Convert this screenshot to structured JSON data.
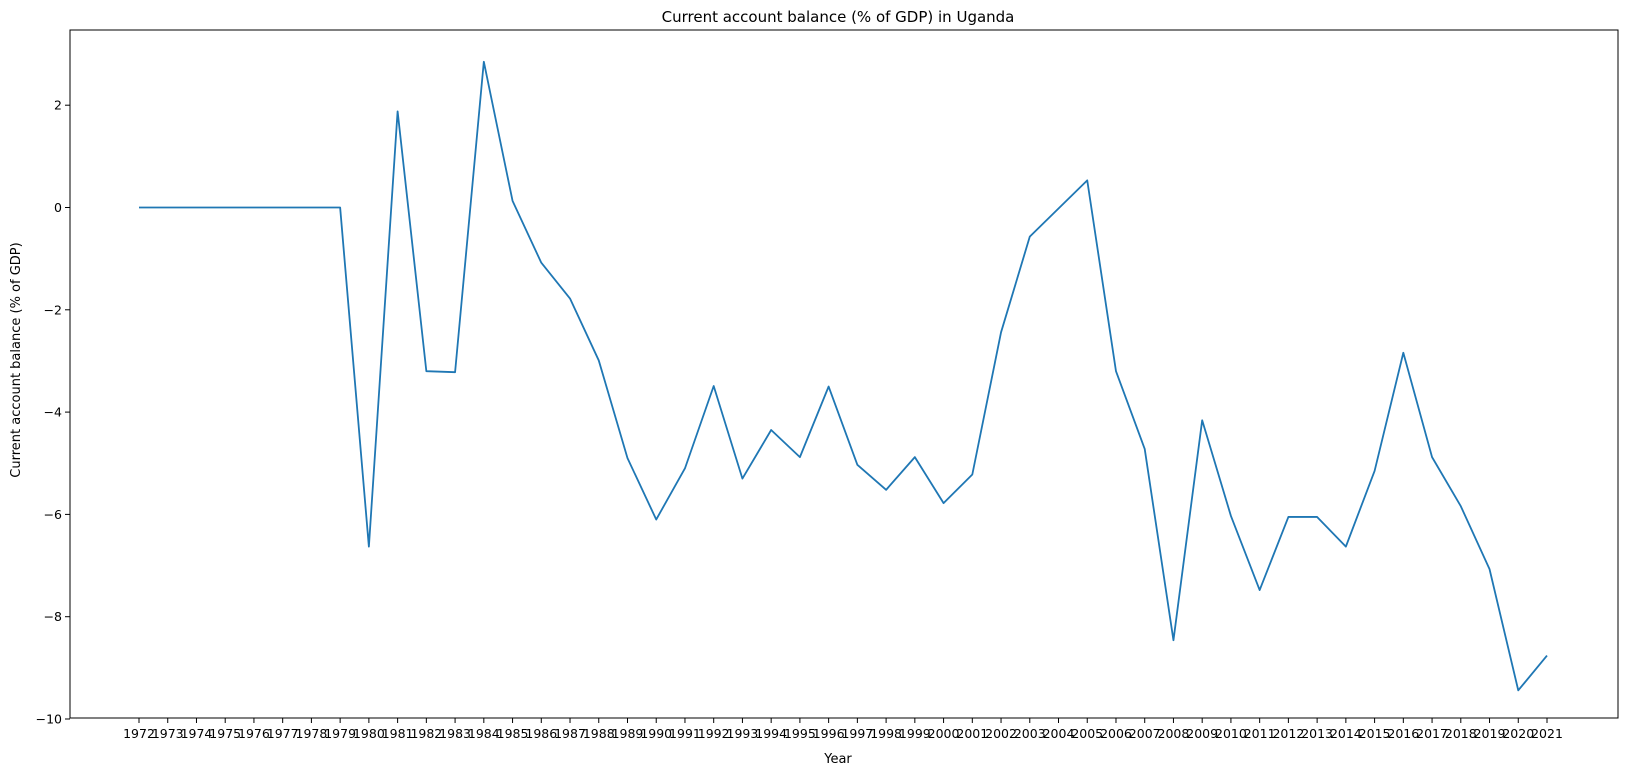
{
  "chart_data": {
    "type": "line",
    "title": "Current account balance (% of GDP) in Uganda",
    "xlabel": "Year",
    "ylabel": "Current account balance (% of GDP)",
    "ylim": [
      -10,
      3
    ],
    "yticks": [
      2,
      0,
      -2,
      -4,
      -6,
      -8,
      -10
    ],
    "ytick_labels": [
      "2",
      "0",
      "−2",
      "−4",
      "−6",
      "−8",
      "−10"
    ],
    "grid": false,
    "colors": {
      "line": "#1f77b4"
    },
    "x": [
      "1972",
      "1973",
      "1974",
      "1975",
      "1976",
      "1977",
      "1978",
      "1979",
      "1980",
      "1981",
      "1982",
      "1983",
      "1984",
      "1985",
      "1986",
      "1987",
      "1988",
      "1989",
      "1990",
      "1991",
      "1992",
      "1993",
      "1994",
      "1995",
      "1996",
      "1997",
      "1998",
      "1999",
      "2000",
      "2001",
      "2002",
      "2003",
      "2004",
      "2005",
      "2006",
      "2007",
      "2008",
      "2009",
      "2010",
      "2011",
      "2012",
      "2013",
      "2014",
      "2015",
      "2016",
      "2017",
      "2018",
      "2019",
      "2020",
      "2021"
    ],
    "series": [
      {
        "values": [
          0,
          0,
          0,
          0,
          0,
          0,
          0,
          0,
          -6.63,
          1.88,
          -3.2,
          -3.22,
          2.85,
          0.13,
          -1.08,
          -1.78,
          -2.99,
          -4.9,
          -6.1,
          -5.1,
          -3.49,
          -5.3,
          -4.35,
          -4.88,
          -3.5,
          -5.03,
          -5.52,
          -4.88,
          -5.78,
          -5.22,
          -2.44,
          -0.57,
          -0.02,
          0.53,
          -3.2,
          -4.72,
          -8.46,
          -4.16,
          -6.03,
          -7.48,
          -6.05,
          -6.05,
          -6.63,
          -5.15,
          -2.84,
          -4.88,
          -5.84,
          -7.07,
          -9.44,
          -8.76
        ]
      }
    ]
  }
}
